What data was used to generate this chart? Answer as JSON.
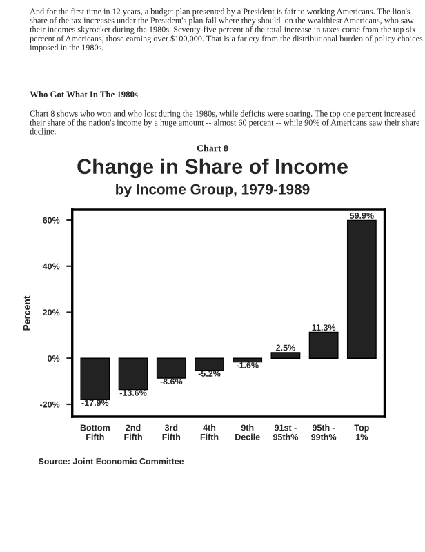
{
  "chart_data": {
    "type": "bar",
    "title": "Change in Share of Income",
    "subtitle": "by Income Group, 1979-1989",
    "ylabel": "Percent",
    "annotations": [
      "And for the first time in 12 years, a budget plan presented by a President is fair to working Americans. The lion's share of the tax increases under the President's plan fall where they should–on the wealthiest Americans, who saw their incomes skyrocket during the 1980s. Seventy-five percent of the total increase in taxes come from the top six percent of Americans, those earning over $100,000. That is a far cry from the distributional burden of policy choices imposed in the 1980s.",
      "Who Got What In The 1980s",
      "Chart 8 shows who won and who lost during the 1980s, while deficits were soaring. The top one percent increased their share of the nation's income by a huge amount -- almost 60 percent -- while 90% of Americans saw their share decline.",
      "Chart 8",
      "Source: Joint Economic Committee"
    ],
    "categories": [
      "Bottom\nFifth",
      "2nd\nFifth",
      "3rd\nFifth",
      "4th\nFifth",
      "9th\nDecile",
      "91st -\n95th%",
      "95th -\n99th%",
      "Top\n1%"
    ],
    "values": [
      -17.9,
      -13.6,
      -8.6,
      -5.2,
      -1.6,
      2.5,
      11.3,
      59.9
    ],
    "value_labels": [
      "-17.9%",
      "-13.6%",
      "-8.6%",
      "-5.2%",
      "-1.6%",
      "2.5%",
      "11.3%",
      "59.9%"
    ],
    "color": "#222222",
    "ylim": [
      -25.4,
      64.5
    ],
    "yticks": [
      {
        "value": -20,
        "label": "-20%"
      },
      {
        "value": 0,
        "label": "0%"
      },
      {
        "value": 20,
        "label": "20%"
      },
      {
        "value": 40,
        "label": "40%"
      },
      {
        "value": 60,
        "label": "60%"
      }
    ],
    "grid": false,
    "legend": false
  }
}
